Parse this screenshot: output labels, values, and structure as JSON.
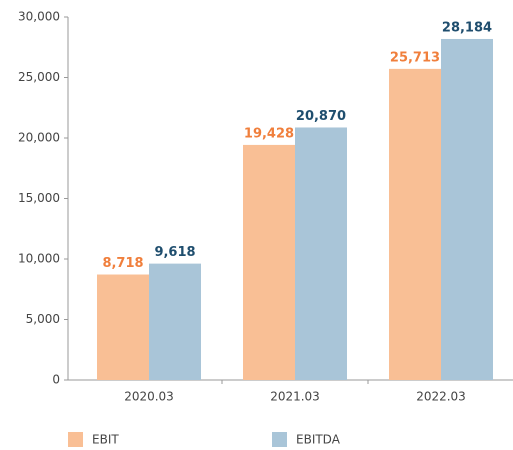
{
  "chart_data": {
    "type": "bar",
    "categories": [
      "2020.03",
      "2021.03",
      "2022.03"
    ],
    "series": [
      {
        "name": "EBIT",
        "color": "#f9bf95",
        "label_color": "#f07f3c",
        "values": [
          8718,
          19428,
          25713
        ],
        "value_labels": [
          "8,718",
          "19,428",
          "25,713"
        ]
      },
      {
        "name": "EBITDA",
        "color": "#a9c5d8",
        "label_color": "#1f4e6e",
        "values": [
          9618,
          20870,
          28184
        ],
        "value_labels": [
          "9,618",
          "20,870",
          "28,184"
        ]
      }
    ],
    "ylim": [
      0,
      30000
    ],
    "yticks": [
      0,
      {
        "value": 5000,
        "label": "5,000"
      },
      {
        "value": 10000,
        "label": "10,000"
      },
      {
        "value": 15000,
        "label": "15,000"
      },
      {
        "value": 20000,
        "label": "20,000"
      },
      {
        "value": 25000,
        "label": "25,000"
      },
      {
        "value": 30000,
        "label": "30,000"
      }
    ],
    "grid": false,
    "legend": "bottom"
  }
}
